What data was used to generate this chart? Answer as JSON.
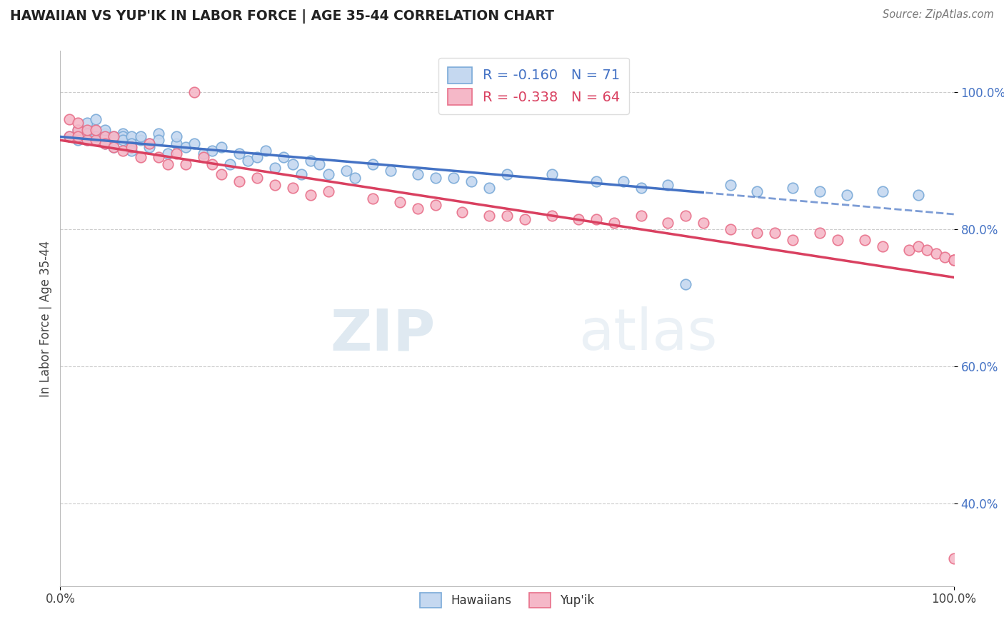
{
  "title": "HAWAIIAN VS YUP'IK IN LABOR FORCE | AGE 35-44 CORRELATION CHART",
  "source_text": "Source: ZipAtlas.com",
  "ylabel": "In Labor Force | Age 35-44",
  "xlim": [
    0.0,
    1.0
  ],
  "ylim": [
    0.28,
    1.06
  ],
  "blue_R": -0.16,
  "blue_N": 71,
  "pink_R": -0.338,
  "pink_N": 64,
  "blue_color": "#c5d8f0",
  "pink_color": "#f5b8c8",
  "blue_edge_color": "#7aaad8",
  "pink_edge_color": "#e8708a",
  "blue_line_color": "#4472c4",
  "pink_line_color": "#d94060",
  "legend_label_blue": "Hawaiians",
  "legend_label_pink": "Yup'ik",
  "watermark_zip": "ZIP",
  "watermark_atlas": "atlas",
  "background_color": "#ffffff",
  "blue_x": [
    0.01,
    0.02,
    0.02,
    0.03,
    0.03,
    0.03,
    0.04,
    0.04,
    0.04,
    0.05,
    0.05,
    0.05,
    0.05,
    0.06,
    0.06,
    0.06,
    0.07,
    0.07,
    0.07,
    0.08,
    0.08,
    0.08,
    0.09,
    0.09,
    0.1,
    0.1,
    0.11,
    0.11,
    0.12,
    0.13,
    0.13,
    0.14,
    0.15,
    0.16,
    0.17,
    0.18,
    0.19,
    0.2,
    0.21,
    0.22,
    0.23,
    0.24,
    0.25,
    0.26,
    0.27,
    0.28,
    0.29,
    0.3,
    0.32,
    0.33,
    0.35,
    0.37,
    0.4,
    0.42,
    0.44,
    0.46,
    0.48,
    0.5,
    0.55,
    0.6,
    0.63,
    0.65,
    0.68,
    0.7,
    0.75,
    0.78,
    0.82,
    0.85,
    0.88,
    0.92,
    0.96
  ],
  "blue_y": [
    0.935,
    0.93,
    0.945,
    0.94,
    0.93,
    0.955,
    0.945,
    0.935,
    0.96,
    0.94,
    0.935,
    0.945,
    0.925,
    0.93,
    0.935,
    0.92,
    0.94,
    0.935,
    0.93,
    0.935,
    0.925,
    0.915,
    0.93,
    0.935,
    0.925,
    0.92,
    0.94,
    0.93,
    0.91,
    0.925,
    0.935,
    0.92,
    0.925,
    0.91,
    0.915,
    0.92,
    0.895,
    0.91,
    0.9,
    0.905,
    0.915,
    0.89,
    0.905,
    0.895,
    0.88,
    0.9,
    0.895,
    0.88,
    0.885,
    0.875,
    0.895,
    0.885,
    0.88,
    0.875,
    0.875,
    0.87,
    0.86,
    0.88,
    0.88,
    0.87,
    0.87,
    0.86,
    0.865,
    0.72,
    0.865,
    0.855,
    0.86,
    0.855,
    0.85,
    0.855,
    0.85
  ],
  "pink_x": [
    0.01,
    0.01,
    0.02,
    0.02,
    0.02,
    0.03,
    0.03,
    0.04,
    0.04,
    0.05,
    0.05,
    0.06,
    0.06,
    0.07,
    0.08,
    0.09,
    0.1,
    0.11,
    0.12,
    0.13,
    0.14,
    0.15,
    0.16,
    0.17,
    0.18,
    0.2,
    0.22,
    0.24,
    0.26,
    0.28,
    0.3,
    0.35,
    0.38,
    0.4,
    0.42,
    0.45,
    0.48,
    0.5,
    0.52,
    0.55,
    0.58,
    0.6,
    0.62,
    0.65,
    0.68,
    0.7,
    0.72,
    0.75,
    0.78,
    0.8,
    0.82,
    0.85,
    0.87,
    0.9,
    0.92,
    0.95,
    0.96,
    0.97,
    0.98,
    0.99,
    1.0,
    1.0,
    1.0,
    1.0
  ],
  "pink_y": [
    0.96,
    0.935,
    0.945,
    0.935,
    0.955,
    0.93,
    0.945,
    0.93,
    0.945,
    0.935,
    0.925,
    0.935,
    0.92,
    0.915,
    0.92,
    0.91,
    0.925,
    0.905,
    0.895,
    0.91,
    0.895,
    1.0,
    0.905,
    0.895,
    0.88,
    0.87,
    0.875,
    0.865,
    0.86,
    0.85,
    0.855,
    0.845,
    0.84,
    0.83,
    0.835,
    0.825,
    0.82,
    0.82,
    0.815,
    0.82,
    0.815,
    0.815,
    0.81,
    0.82,
    0.81,
    0.82,
    0.81,
    0.8,
    0.795,
    0.795,
    0.785,
    0.795,
    0.785,
    0.785,
    0.775,
    0.77,
    0.775,
    0.77,
    0.765,
    0.76,
    0.755,
    0.755,
    0.755,
    0.32
  ]
}
